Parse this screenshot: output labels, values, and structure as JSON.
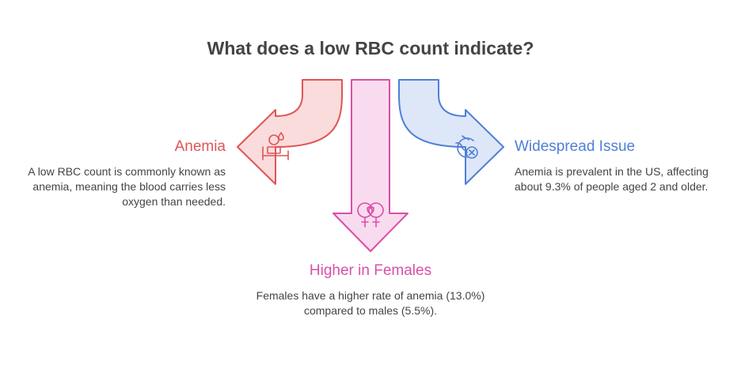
{
  "title": "What does a low RBC count indicate?",
  "colors": {
    "anemia": "#e05555",
    "females": "#d94fa6",
    "widespread": "#4f7fd6",
    "text": "#444444"
  },
  "branches": {
    "anemia": {
      "heading": "Anemia",
      "text": "A low RBC count is commonly known as anemia, meaning the blood carries less oxygen than needed.",
      "icon": "patient-bed-icon"
    },
    "females": {
      "heading": "Higher in Females",
      "text": "Females have a higher rate of anemia (13.0%) compared to males (5.5%).",
      "icon": "female-symbols-heart-icon"
    },
    "widespread": {
      "heading": "Widespread Issue",
      "text": "Anemia is prevalent in the US, affecting about 9.3% of people aged 2 and older.",
      "icon": "globe-x-icon"
    }
  }
}
